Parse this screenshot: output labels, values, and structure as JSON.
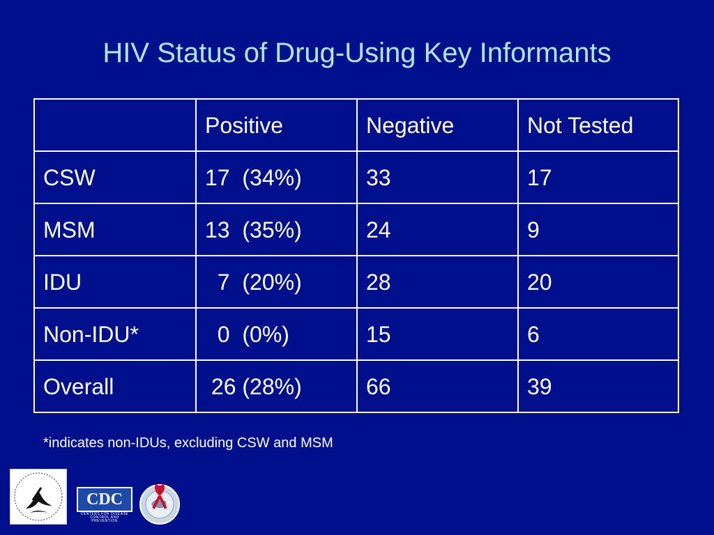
{
  "slide": {
    "title": "HIV Status of Drug-Using Key Informants",
    "footnote": "*indicates non-IDUs, excluding CSW and MSM"
  },
  "table": {
    "headers": [
      "",
      "Positive",
      "Negative",
      "Not Tested"
    ],
    "rows": [
      [
        "CSW",
        "17  (34%)",
        "33",
        "17"
      ],
      [
        "MSM",
        "13  (35%)",
        "24",
        "9"
      ],
      [
        "IDU",
        "  7  (20%)",
        "28",
        "20"
      ],
      [
        "Non-IDU*",
        "  0  (0%)",
        "15",
        "6"
      ],
      [
        "Overall",
        " 26 (28%)",
        "66",
        "39"
      ]
    ]
  },
  "logos": {
    "hhs": "hhs-eagle-seal-icon",
    "cdc": {
      "name": "CDC",
      "subtitle": "CENTERS FOR DISEASE CONTROL AND PREVENTION"
    },
    "seal": "red-ribbon-globe-seal-icon"
  },
  "colors": {
    "background": "#000f8c",
    "title": "#aee8ee",
    "text": "#ffffff",
    "cdc_blue": "#1d4aa8",
    "ribbon_red": "#c8102e"
  }
}
